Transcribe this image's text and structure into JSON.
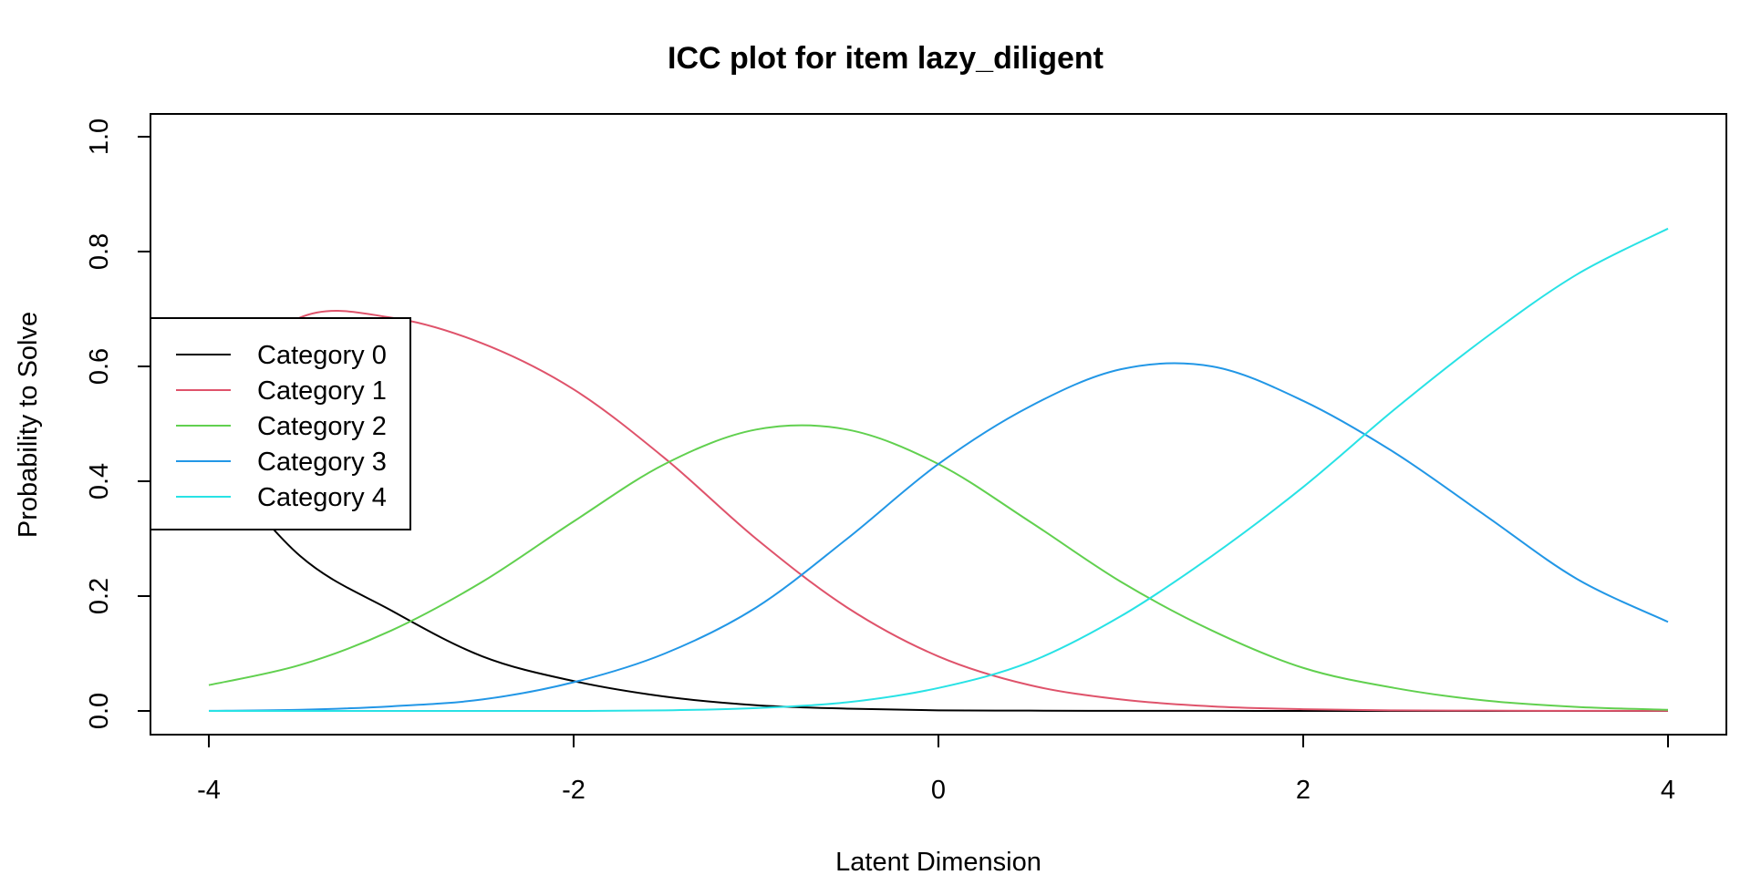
{
  "chart_data": {
    "type": "line",
    "title": "ICC plot for item lazy_diligent",
    "xlabel": "Latent Dimension",
    "ylabel": "Probability to Solve",
    "xlim": [
      -4,
      4
    ],
    "ylim": [
      0,
      1
    ],
    "x_ticks": [
      "-4",
      "-2",
      "0",
      "2",
      "4"
    ],
    "y_ticks": [
      "0.0",
      "0.2",
      "0.4",
      "0.6",
      "0.8",
      "1.0"
    ],
    "x": [
      -4,
      -3.5,
      -3,
      -2.5,
      -2,
      -1.5,
      -1,
      -0.5,
      0,
      0.5,
      1,
      1.5,
      2,
      2.5,
      3,
      3.5,
      4
    ],
    "legend_position": "left",
    "series": [
      {
        "name": "Category 0",
        "color": "#000000",
        "values": [
          0.45,
          0.27,
          0.175,
          0.095,
          0.052,
          0.025,
          0.01,
          0.004,
          0.001,
          0.0005,
          0.0002,
          0.0001,
          0,
          0,
          0,
          0,
          0
        ]
      },
      {
        "name": "Category 1",
        "color": "#DF536B",
        "values": [
          0.55,
          0.685,
          0.685,
          0.64,
          0.56,
          0.44,
          0.3,
          0.18,
          0.095,
          0.045,
          0.02,
          0.008,
          0.003,
          0.001,
          0.0005,
          0.0002,
          0.0001
        ]
      },
      {
        "name": "Category 2",
        "color": "#61D04F",
        "values": [
          0.045,
          0.08,
          0.14,
          0.225,
          0.33,
          0.43,
          0.49,
          0.49,
          0.43,
          0.33,
          0.225,
          0.14,
          0.075,
          0.04,
          0.018,
          0.007,
          0.002
        ]
      },
      {
        "name": "Category 3",
        "color": "#2297E6",
        "values": [
          0.0001,
          0.002,
          0.008,
          0.02,
          0.05,
          0.1,
          0.18,
          0.3,
          0.43,
          0.53,
          0.595,
          0.6,
          0.54,
          0.45,
          0.34,
          0.23,
          0.155
        ]
      },
      {
        "name": "Category 4",
        "color": "#28E2E5",
        "values": [
          0,
          0,
          0,
          0,
          0,
          0.001,
          0.005,
          0.015,
          0.04,
          0.085,
          0.165,
          0.27,
          0.39,
          0.525,
          0.65,
          0.76,
          0.84
        ]
      }
    ]
  }
}
